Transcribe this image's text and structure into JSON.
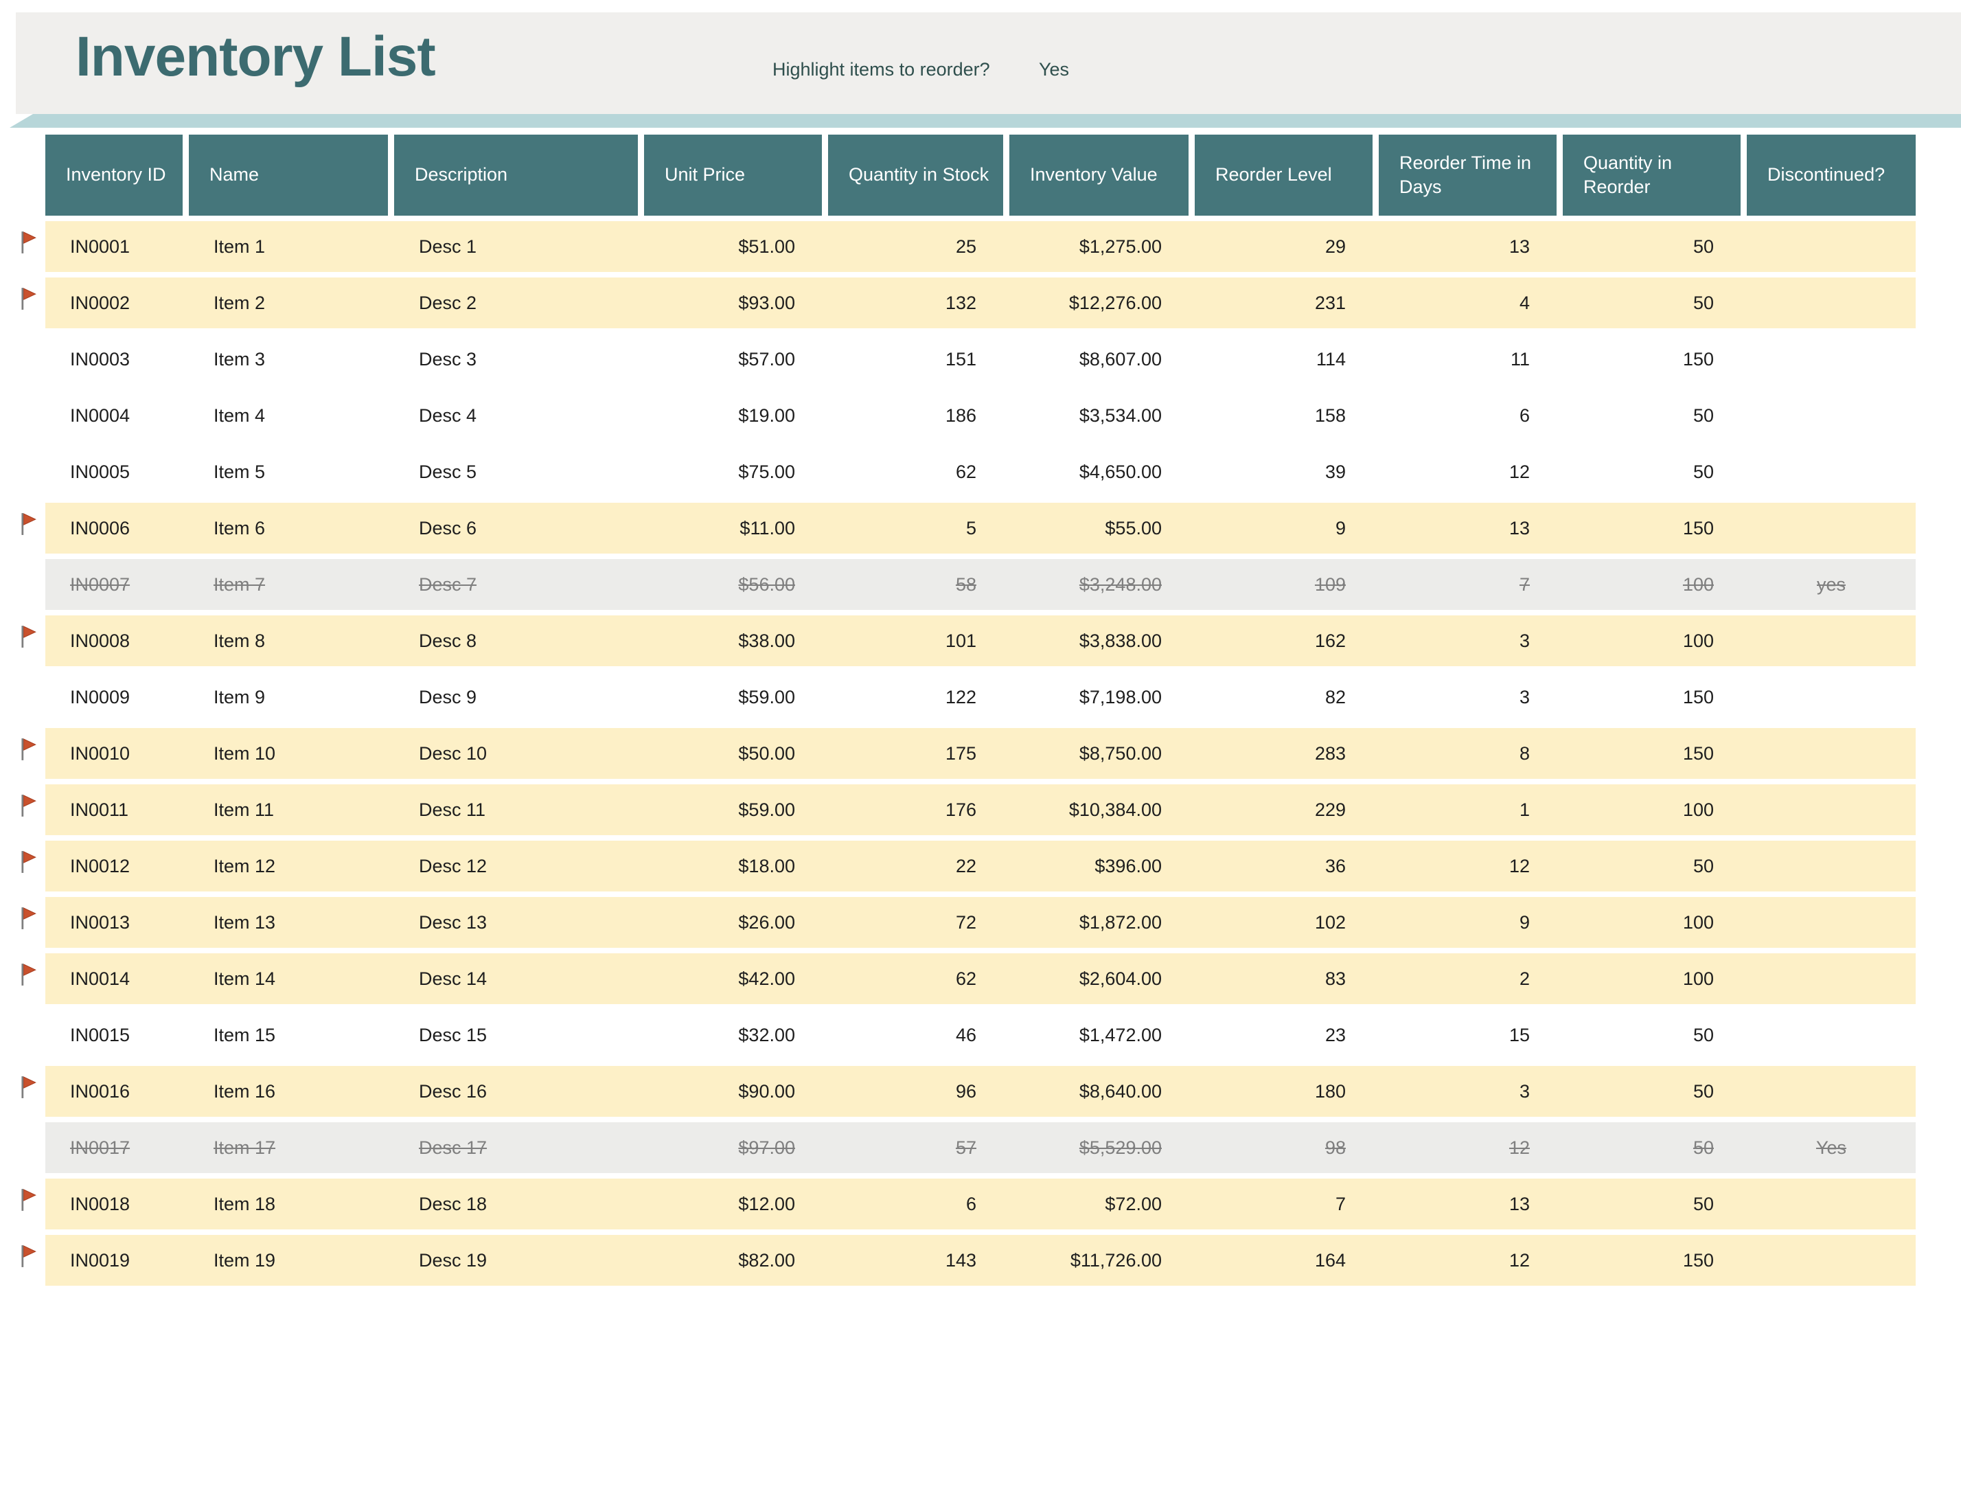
{
  "header": {
    "title": "Inventory List",
    "reorder_question": "Highlight items to reorder?",
    "reorder_answer": "Yes"
  },
  "table": {
    "columns": [
      "Inventory ID",
      "Name",
      "Description",
      "Unit Price",
      "Quantity in Stock",
      "Inventory Value",
      "Reorder Level",
      "Reorder Time in Days",
      "Quantity in Reorder",
      "Discontinued?"
    ],
    "rows": [
      {
        "inventory_id": "IN0001",
        "name": "Item 1",
        "description": "Desc 1",
        "unit_price": "$51.00",
        "quantity_in_stock": "25",
        "inventory_value": "$1,275.00",
        "reorder_level": "29",
        "reorder_time_in_days": "13",
        "quantity_in_reorder": "50",
        "discontinued": "",
        "flagged": true
      },
      {
        "inventory_id": "IN0002",
        "name": "Item 2",
        "description": "Desc 2",
        "unit_price": "$93.00",
        "quantity_in_stock": "132",
        "inventory_value": "$12,276.00",
        "reorder_level": "231",
        "reorder_time_in_days": "4",
        "quantity_in_reorder": "50",
        "discontinued": "",
        "flagged": true
      },
      {
        "inventory_id": "IN0003",
        "name": "Item 3",
        "description": "Desc 3",
        "unit_price": "$57.00",
        "quantity_in_stock": "151",
        "inventory_value": "$8,607.00",
        "reorder_level": "114",
        "reorder_time_in_days": "11",
        "quantity_in_reorder": "150",
        "discontinued": "",
        "flagged": false
      },
      {
        "inventory_id": "IN0004",
        "name": "Item 4",
        "description": "Desc 4",
        "unit_price": "$19.00",
        "quantity_in_stock": "186",
        "inventory_value": "$3,534.00",
        "reorder_level": "158",
        "reorder_time_in_days": "6",
        "quantity_in_reorder": "50",
        "discontinued": "",
        "flagged": false
      },
      {
        "inventory_id": "IN0005",
        "name": "Item 5",
        "description": "Desc 5",
        "unit_price": "$75.00",
        "quantity_in_stock": "62",
        "inventory_value": "$4,650.00",
        "reorder_level": "39",
        "reorder_time_in_days": "12",
        "quantity_in_reorder": "50",
        "discontinued": "",
        "flagged": false
      },
      {
        "inventory_id": "IN0006",
        "name": "Item 6",
        "description": "Desc 6",
        "unit_price": "$11.00",
        "quantity_in_stock": "5",
        "inventory_value": "$55.00",
        "reorder_level": "9",
        "reorder_time_in_days": "13",
        "quantity_in_reorder": "150",
        "discontinued": "",
        "flagged": true
      },
      {
        "inventory_id": "IN0007",
        "name": "Item 7",
        "description": "Desc 7",
        "unit_price": "$56.00",
        "quantity_in_stock": "58",
        "inventory_value": "$3,248.00",
        "reorder_level": "109",
        "reorder_time_in_days": "7",
        "quantity_in_reorder": "100",
        "discontinued": "yes",
        "flagged": false
      },
      {
        "inventory_id": "IN0008",
        "name": "Item 8",
        "description": "Desc 8",
        "unit_price": "$38.00",
        "quantity_in_stock": "101",
        "inventory_value": "$3,838.00",
        "reorder_level": "162",
        "reorder_time_in_days": "3",
        "quantity_in_reorder": "100",
        "discontinued": "",
        "flagged": true
      },
      {
        "inventory_id": "IN0009",
        "name": "Item 9",
        "description": "Desc 9",
        "unit_price": "$59.00",
        "quantity_in_stock": "122",
        "inventory_value": "$7,198.00",
        "reorder_level": "82",
        "reorder_time_in_days": "3",
        "quantity_in_reorder": "150",
        "discontinued": "",
        "flagged": false
      },
      {
        "inventory_id": "IN0010",
        "name": "Item 10",
        "description": "Desc 10",
        "unit_price": "$50.00",
        "quantity_in_stock": "175",
        "inventory_value": "$8,750.00",
        "reorder_level": "283",
        "reorder_time_in_days": "8",
        "quantity_in_reorder": "150",
        "discontinued": "",
        "flagged": true
      },
      {
        "inventory_id": "IN0011",
        "name": "Item 11",
        "description": "Desc 11",
        "unit_price": "$59.00",
        "quantity_in_stock": "176",
        "inventory_value": "$10,384.00",
        "reorder_level": "229",
        "reorder_time_in_days": "1",
        "quantity_in_reorder": "100",
        "discontinued": "",
        "flagged": true
      },
      {
        "inventory_id": "IN0012",
        "name": "Item 12",
        "description": "Desc 12",
        "unit_price": "$18.00",
        "quantity_in_stock": "22",
        "inventory_value": "$396.00",
        "reorder_level": "36",
        "reorder_time_in_days": "12",
        "quantity_in_reorder": "50",
        "discontinued": "",
        "flagged": true
      },
      {
        "inventory_id": "IN0013",
        "name": "Item 13",
        "description": "Desc 13",
        "unit_price": "$26.00",
        "quantity_in_stock": "72",
        "inventory_value": "$1,872.00",
        "reorder_level": "102",
        "reorder_time_in_days": "9",
        "quantity_in_reorder": "100",
        "discontinued": "",
        "flagged": true
      },
      {
        "inventory_id": "IN0014",
        "name": "Item 14",
        "description": "Desc 14",
        "unit_price": "$42.00",
        "quantity_in_stock": "62",
        "inventory_value": "$2,604.00",
        "reorder_level": "83",
        "reorder_time_in_days": "2",
        "quantity_in_reorder": "100",
        "discontinued": "",
        "flagged": true
      },
      {
        "inventory_id": "IN0015",
        "name": "Item 15",
        "description": "Desc 15",
        "unit_price": "$32.00",
        "quantity_in_stock": "46",
        "inventory_value": "$1,472.00",
        "reorder_level": "23",
        "reorder_time_in_days": "15",
        "quantity_in_reorder": "50",
        "discontinued": "",
        "flagged": false
      },
      {
        "inventory_id": "IN0016",
        "name": "Item 16",
        "description": "Desc 16",
        "unit_price": "$90.00",
        "quantity_in_stock": "96",
        "inventory_value": "$8,640.00",
        "reorder_level": "180",
        "reorder_time_in_days": "3",
        "quantity_in_reorder": "50",
        "discontinued": "",
        "flagged": true
      },
      {
        "inventory_id": "IN0017",
        "name": "Item 17",
        "description": "Desc 17",
        "unit_price": "$97.00",
        "quantity_in_stock": "57",
        "inventory_value": "$5,529.00",
        "reorder_level": "98",
        "reorder_time_in_days": "12",
        "quantity_in_reorder": "50",
        "discontinued": "Yes",
        "flagged": false
      },
      {
        "inventory_id": "IN0018",
        "name": "Item 18",
        "description": "Desc 18",
        "unit_price": "$12.00",
        "quantity_in_stock": "6",
        "inventory_value": "$72.00",
        "reorder_level": "7",
        "reorder_time_in_days": "13",
        "quantity_in_reorder": "50",
        "discontinued": "",
        "flagged": true
      },
      {
        "inventory_id": "IN0019",
        "name": "Item 19",
        "description": "Desc 19",
        "unit_price": "$82.00",
        "quantity_in_stock": "143",
        "inventory_value": "$11,726.00",
        "reorder_level": "164",
        "reorder_time_in_days": "12",
        "quantity_in_reorder": "150",
        "discontinued": "",
        "flagged": true
      }
    ]
  },
  "colors": {
    "header_teal": "#45767B",
    "title_teal": "#3C6B70",
    "band_gray": "#F0EFED",
    "shadow_teal": "#B7D6D9",
    "highlight_cream": "#FDF0C7",
    "discontinued_gray": "#ECECEA",
    "discontinued_text": "#7F7F7F",
    "flag_orange": "#C9512D",
    "flag_pole_gray": "#7E7E7E"
  }
}
